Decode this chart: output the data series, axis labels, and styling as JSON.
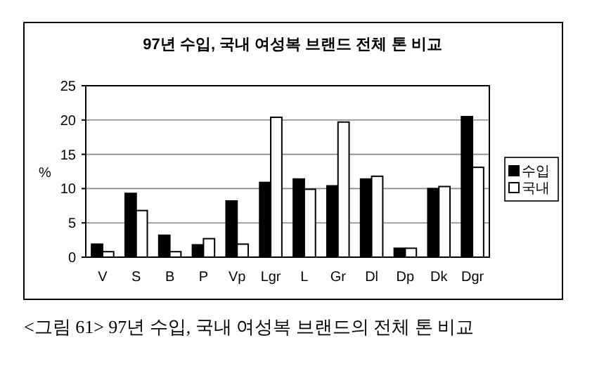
{
  "chart_data": {
    "type": "bar",
    "title": "97년 수입, 국내 여성복 브랜드 전체 톤 비교",
    "ylabel": "%",
    "categories": [
      "V",
      "S",
      "B",
      "P",
      "Vp",
      "Lgr",
      "L",
      "Gr",
      "Dl",
      "Dp",
      "Dk",
      "Dgr"
    ],
    "series": [
      {
        "name": "수입",
        "color": "#000000",
        "values": [
          1.9,
          9.3,
          3.2,
          1.8,
          8.2,
          10.9,
          11.4,
          10.4,
          11.4,
          1.3,
          10.0,
          20.5
        ]
      },
      {
        "name": "국내",
        "color": "#ffffff",
        "values": [
          0.8,
          6.8,
          0.8,
          2.7,
          1.9,
          20.4,
          9.9,
          19.7,
          11.8,
          1.3,
          10.3,
          13.1
        ]
      }
    ],
    "ylim": [
      0,
      25
    ],
    "yticks": [
      0,
      5,
      10,
      15,
      20,
      25
    ],
    "grid": "y",
    "legend": "right",
    "annotations": [
      "<그림 61> 97년 수입, 국내 여성복 브랜드의 전체 톤 비교"
    ]
  }
}
